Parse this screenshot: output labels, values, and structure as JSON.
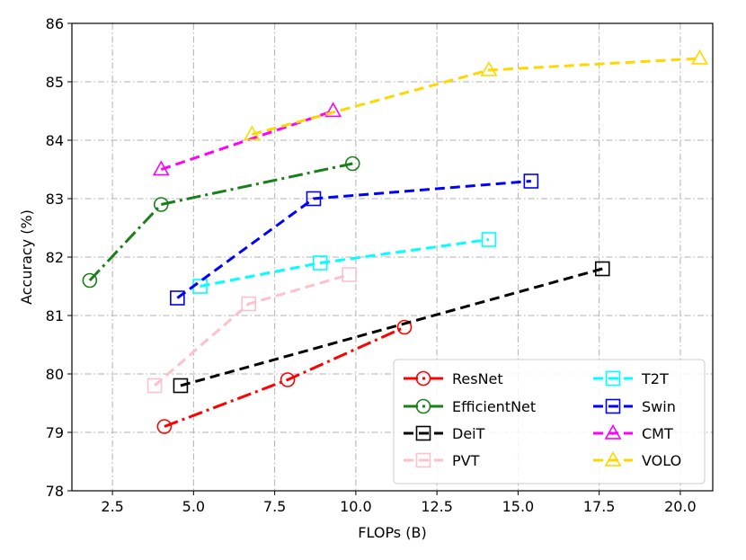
{
  "chart_data": {
    "type": "line",
    "title": "",
    "xlabel": "FLOPs (B)",
    "ylabel": "Accuracy (%)",
    "xlim": [
      1.25,
      21.0
    ],
    "ylim": [
      78,
      86
    ],
    "xticks": [
      2.5,
      5.0,
      7.5,
      10.0,
      12.5,
      15.0,
      17.5,
      20.0
    ],
    "xtick_labels": [
      "2.5",
      "5.0",
      "7.5",
      "10.0",
      "12.5",
      "15.0",
      "17.5",
      "20.0"
    ],
    "yticks": [
      78,
      79,
      80,
      81,
      82,
      83,
      84,
      85,
      86
    ],
    "ytick_labels": [
      "78",
      "79",
      "80",
      "81",
      "82",
      "83",
      "84",
      "85",
      "86"
    ],
    "grid": true,
    "legend_position": "lower-right",
    "series": [
      {
        "name": "ResNet",
        "color": "#ff0000",
        "dash": "dashdot",
        "marker": "circle",
        "x": [
          4.1,
          7.9,
          11.5
        ],
        "y": [
          79.1,
          79.9,
          80.8
        ]
      },
      {
        "name": "EfficientNet",
        "color": "#1a7f1a",
        "dash": "dashdot",
        "marker": "circle",
        "x": [
          1.8,
          4.0,
          9.9
        ],
        "y": [
          81.6,
          82.9,
          83.6
        ]
      },
      {
        "name": "DeiT",
        "color": "#000000",
        "dash": "dashed",
        "marker": "square",
        "x": [
          4.6,
          17.6
        ],
        "y": [
          79.8,
          81.8
        ]
      },
      {
        "name": "PVT",
        "color": "#ffc0cb",
        "dash": "dashed",
        "marker": "square",
        "x": [
          3.8,
          6.7,
          9.8
        ],
        "y": [
          79.8,
          81.2,
          81.7
        ]
      },
      {
        "name": "T2T",
        "color": "#00ffff",
        "dash": "dashed",
        "marker": "square",
        "x": [
          5.2,
          8.9,
          14.1
        ],
        "y": [
          81.5,
          81.9,
          82.3
        ]
      },
      {
        "name": "Swin",
        "color": "#0000ff",
        "dash": "dashed",
        "marker": "square",
        "x": [
          4.5,
          8.7,
          15.4
        ],
        "y": [
          81.3,
          83.0,
          83.3
        ]
      },
      {
        "name": "CMT",
        "color": "#ff00ff",
        "dash": "dashed",
        "marker": "triangle",
        "x": [
          4.0,
          9.3
        ],
        "y": [
          83.5,
          84.5
        ]
      },
      {
        "name": "VOLO",
        "color": "#ffd700",
        "dash": "dashed",
        "marker": "triangle",
        "x": [
          6.8,
          14.1,
          20.6
        ],
        "y": [
          84.1,
          85.2,
          85.4
        ]
      }
    ]
  }
}
